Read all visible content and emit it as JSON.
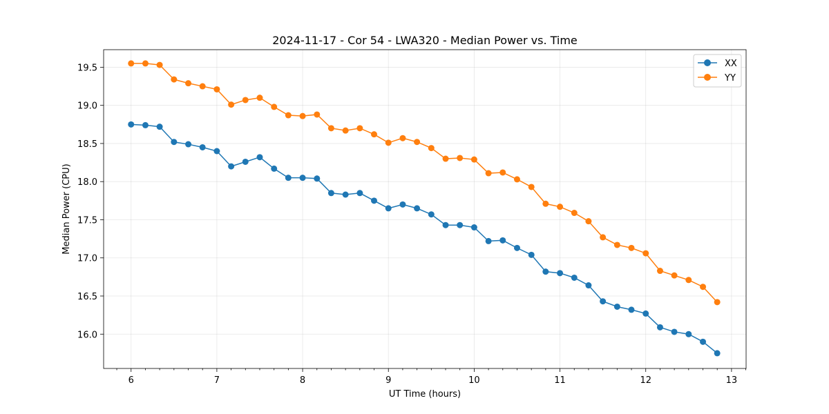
{
  "chart_data": {
    "type": "line",
    "title": "2024-11-17 - Cor 54 - LWA320 - Median Power vs. Time",
    "xlabel": "UT Time (hours)",
    "ylabel": "Median Power (CPU)",
    "xlim": [
      5.68,
      13.17
    ],
    "ylim": [
      15.55,
      19.73
    ],
    "xticks": [
      6,
      7,
      8,
      9,
      10,
      11,
      12,
      13
    ],
    "xtick_labels": [
      "6",
      "7",
      "8",
      "9",
      "10",
      "11",
      "12",
      "13"
    ],
    "yticks": [
      16.0,
      16.5,
      17.0,
      17.5,
      18.0,
      18.5,
      19.0,
      19.5
    ],
    "ytick_labels": [
      "16.0",
      "16.5",
      "17.0",
      "17.5",
      "18.0",
      "18.5",
      "19.0",
      "19.5"
    ],
    "grid": true,
    "legend_position": "top-right",
    "x": [
      6.0,
      6.167,
      6.333,
      6.5,
      6.667,
      6.833,
      7.0,
      7.167,
      7.333,
      7.5,
      7.667,
      7.833,
      8.0,
      8.167,
      8.333,
      8.5,
      8.667,
      8.833,
      9.0,
      9.167,
      9.333,
      9.5,
      9.667,
      9.833,
      10.0,
      10.167,
      10.333,
      10.5,
      10.667,
      10.833,
      11.0,
      11.167,
      11.333,
      11.5,
      11.667,
      11.833,
      12.0,
      12.167,
      12.333,
      12.5,
      12.667,
      12.833
    ],
    "series": [
      {
        "name": "XX",
        "color": "#1f77b4",
        "values": [
          18.75,
          18.74,
          18.72,
          18.52,
          18.49,
          18.45,
          18.4,
          18.2,
          18.26,
          18.32,
          18.17,
          18.05,
          18.05,
          18.04,
          17.85,
          17.83,
          17.85,
          17.75,
          17.65,
          17.7,
          17.65,
          17.57,
          17.43,
          17.43,
          17.4,
          17.22,
          17.23,
          17.13,
          17.04,
          16.82,
          16.8,
          16.74,
          16.64,
          16.43,
          16.36,
          16.32,
          16.27,
          16.09,
          16.03,
          16.0,
          15.9,
          15.75
        ]
      },
      {
        "name": "YY",
        "color": "#ff7f0e",
        "values": [
          19.55,
          19.55,
          19.53,
          19.34,
          19.29,
          19.25,
          19.21,
          19.01,
          19.07,
          19.1,
          18.98,
          18.87,
          18.86,
          18.88,
          18.7,
          18.67,
          18.7,
          18.62,
          18.51,
          18.57,
          18.52,
          18.44,
          18.3,
          18.31,
          18.29,
          18.11,
          18.12,
          18.03,
          17.93,
          17.71,
          17.67,
          17.59,
          17.48,
          17.27,
          17.17,
          17.13,
          17.06,
          16.83,
          16.77,
          16.71,
          16.62,
          16.42
        ]
      }
    ]
  }
}
